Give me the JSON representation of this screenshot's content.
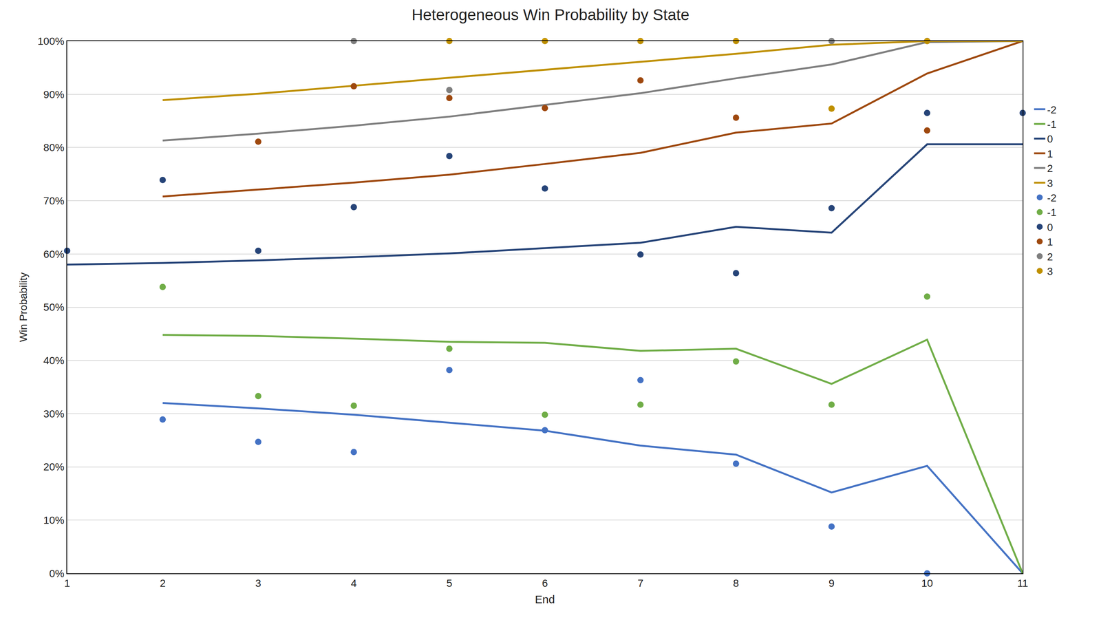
{
  "chart_data": {
    "type": "line",
    "title": "Heterogeneous Win Probability by State",
    "x_label": "End",
    "y_label": "Win Probability",
    "xlim": [
      1,
      11
    ],
    "xticks": [
      1,
      2,
      3,
      4,
      5,
      6,
      7,
      8,
      9,
      10,
      11
    ],
    "ylim": [
      0,
      100
    ],
    "yticks": [
      {
        "value": 0,
        "label": "0%"
      },
      {
        "value": 10,
        "label": "10%"
      },
      {
        "value": 20,
        "label": "20%"
      },
      {
        "value": 30,
        "label": "30%"
      },
      {
        "value": 40,
        "label": "40%"
      },
      {
        "value": 50,
        "label": "50%"
      },
      {
        "value": 60,
        "label": "60%"
      },
      {
        "value": 70,
        "label": "70%"
      },
      {
        "value": 80,
        "label": "80%"
      },
      {
        "value": 90,
        "label": "90%"
      },
      {
        "value": 100,
        "label": "100%"
      }
    ],
    "grid": true,
    "legend": "right",
    "series": [
      {
        "name": "-2",
        "type": "line",
        "color": "#4472c4",
        "x": [
          2,
          3,
          4,
          5,
          6,
          7,
          8,
          9,
          10,
          11
        ],
        "values": [
          32,
          31,
          29.8,
          28.3,
          26.8,
          24,
          22.3,
          15.2,
          20.2,
          0
        ]
      },
      {
        "name": "-1",
        "type": "line",
        "color": "#70ad47",
        "x": [
          2,
          3,
          4,
          5,
          6,
          7,
          8,
          9,
          10,
          11
        ],
        "values": [
          44.8,
          44.6,
          44.1,
          43.5,
          43.3,
          41.8,
          42.2,
          35.6,
          43.9,
          0
        ]
      },
      {
        "name": "0",
        "type": "line",
        "color": "#264478",
        "x": [
          1,
          2,
          3,
          4,
          5,
          6,
          7,
          8,
          9,
          10,
          11
        ],
        "values": [
          58,
          58.3,
          58.8,
          59.4,
          60.1,
          61.1,
          62.1,
          65.1,
          64,
          80.6,
          80.6
        ]
      },
      {
        "name": "1",
        "type": "line",
        "color": "#9e480e",
        "x": [
          2,
          3,
          4,
          5,
          6,
          7,
          8,
          9,
          10,
          11
        ],
        "values": [
          70.8,
          72.1,
          73.4,
          74.9,
          76.9,
          79,
          82.8,
          84.5,
          93.9,
          100
        ]
      },
      {
        "name": "2",
        "type": "line",
        "color": "#7f7f7f",
        "x": [
          2,
          3,
          4,
          5,
          6,
          7,
          8,
          9,
          10,
          11
        ],
        "values": [
          81.3,
          82.6,
          84.1,
          85.8,
          88,
          90.2,
          93,
          95.6,
          99.8,
          100
        ]
      },
      {
        "name": "3",
        "type": "line",
        "color": "#bf9000",
        "x": [
          2,
          3,
          4,
          5,
          6,
          7,
          8,
          9,
          10,
          11
        ],
        "values": [
          88.9,
          90.1,
          91.6,
          93.1,
          94.6,
          96.1,
          97.6,
          99.3,
          100,
          100
        ]
      },
      {
        "name": "-2",
        "type": "scatter",
        "marker": "circle",
        "color": "#4472c4",
        "x": [
          2,
          3,
          4,
          5,
          6,
          7,
          8,
          9,
          10
        ],
        "values": [
          28.9,
          24.7,
          22.8,
          38.2,
          26.9,
          36.3,
          20.6,
          8.8,
          0
        ]
      },
      {
        "name": "-1",
        "type": "scatter",
        "marker": "circle",
        "color": "#70ad47",
        "x": [
          2,
          3,
          4,
          5,
          6,
          7,
          8,
          9,
          10
        ],
        "values": [
          53.8,
          33.3,
          31.5,
          42.2,
          29.8,
          31.7,
          39.8,
          31.7,
          52
        ]
      },
      {
        "name": "0",
        "type": "scatter",
        "marker": "circle",
        "color": "#264478",
        "x": [
          1,
          2,
          3,
          4,
          5,
          6,
          7,
          8,
          9,
          10,
          11
        ],
        "values": [
          60.6,
          73.9,
          60.6,
          68.8,
          78.4,
          72.3,
          59.9,
          56.4,
          68.6,
          86.5,
          86.5
        ]
      },
      {
        "name": "1",
        "type": "scatter",
        "marker": "circle",
        "color": "#9e480e",
        "x": [
          3,
          4,
          5,
          6,
          7,
          8,
          10
        ],
        "values": [
          81.1,
          91.5,
          89.3,
          87.4,
          92.6,
          85.6,
          83.2
        ]
      },
      {
        "name": "2",
        "type": "scatter",
        "marker": "circle",
        "color": "#7f7f7f",
        "x": [
          4,
          5,
          9,
          10
        ],
        "values": [
          100,
          90.8,
          100,
          100
        ]
      },
      {
        "name": "3",
        "type": "scatter",
        "marker": "circle",
        "color": "#bf9000",
        "x": [
          5,
          6,
          7,
          8,
          9,
          10
        ],
        "values": [
          100,
          100,
          100,
          100,
          87.3,
          100
        ]
      }
    ]
  }
}
